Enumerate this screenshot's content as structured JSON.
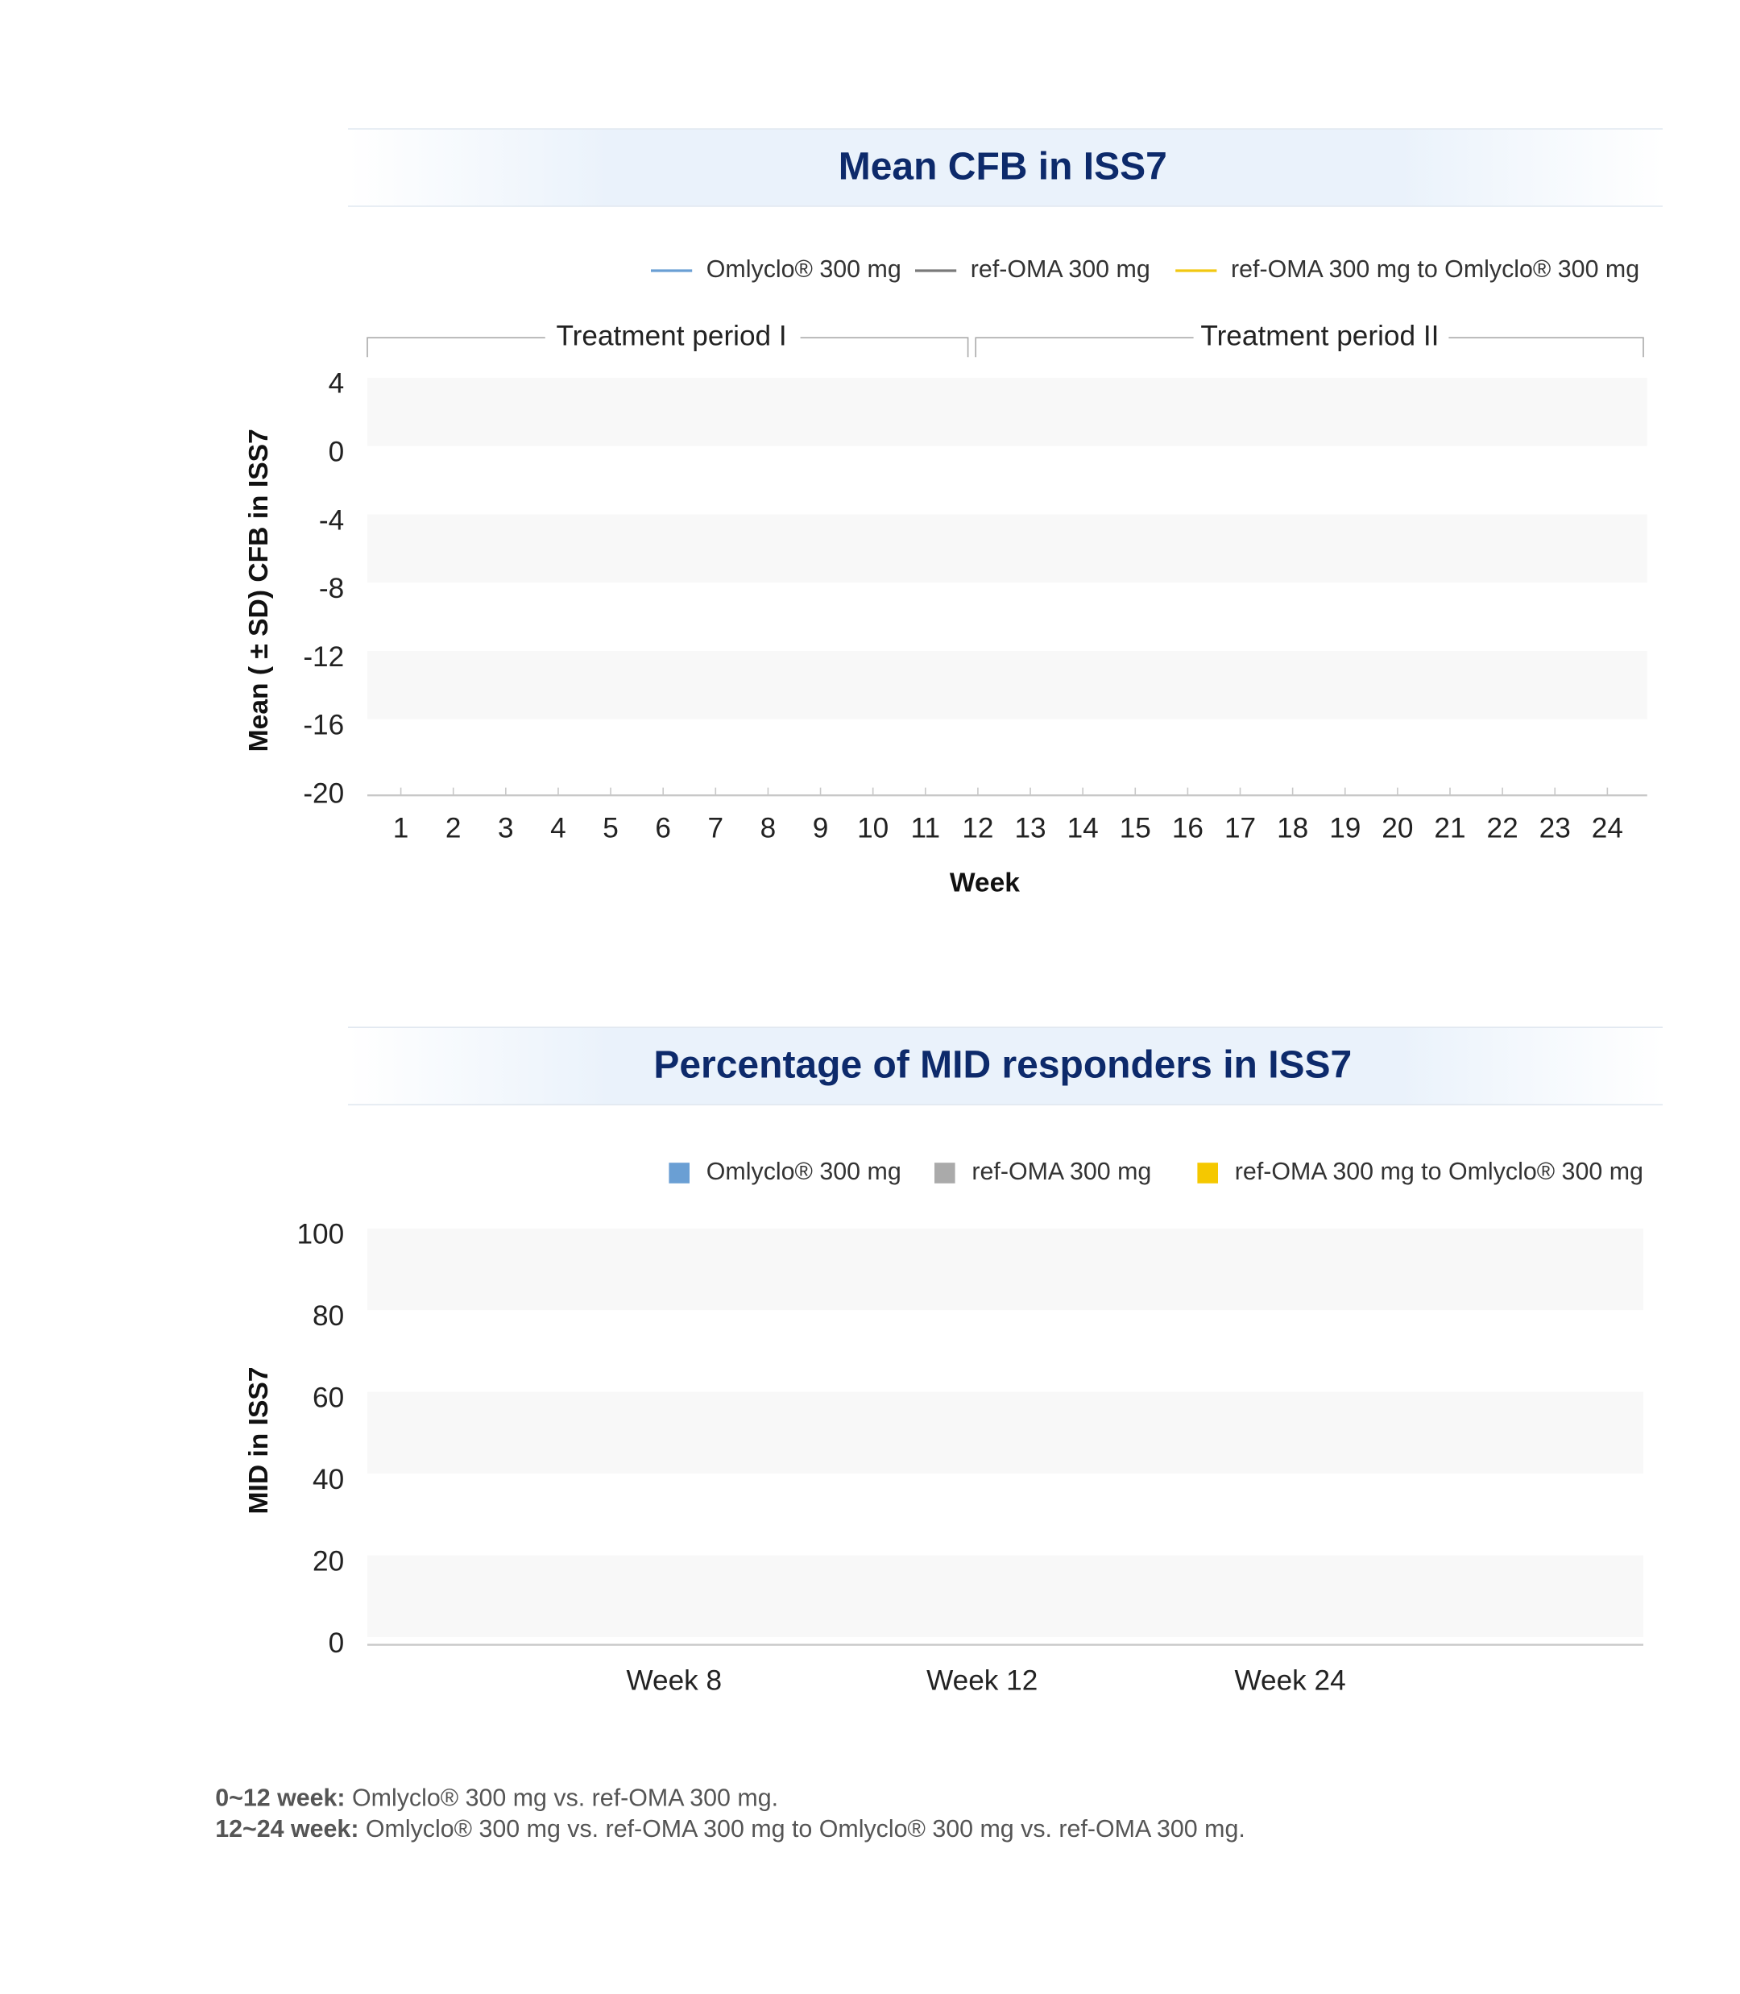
{
  "chart_data": [
    {
      "type": "line",
      "title": "Mean CFB in ISS7",
      "annotations": [
        "Treatment period I",
        "Treatment period II"
      ],
      "categories": [
        "1",
        "2",
        "3",
        "4",
        "5",
        "6",
        "7",
        "8",
        "9",
        "10",
        "11",
        "12",
        "13",
        "14",
        "15",
        "16",
        "17",
        "18",
        "19",
        "20",
        "21",
        "22",
        "23",
        "24"
      ],
      "series": [
        {
          "name": "Omlyclo® 300 mg",
          "color": "#6a9fd4",
          "values": [
            null,
            null,
            null,
            null,
            null,
            null,
            null,
            null,
            null,
            null,
            null,
            null,
            null,
            null,
            null,
            null,
            null,
            null,
            null,
            null,
            null,
            null,
            null,
            null
          ]
        },
        {
          "name": "ref-OMA 300 mg",
          "color": "#7a7a7a",
          "values": [
            null,
            null,
            null,
            null,
            null,
            null,
            null,
            null,
            null,
            null,
            null,
            null,
            null,
            null,
            null,
            null,
            null,
            null,
            null,
            null,
            null,
            null,
            null,
            null
          ]
        },
        {
          "name": "ref-OMA 300 mg to Omlyclo® 300 mg",
          "color": "#f2c811",
          "values": [
            null,
            null,
            null,
            null,
            null,
            null,
            null,
            null,
            null,
            null,
            null,
            null,
            null,
            null,
            null,
            null,
            null,
            null,
            null,
            null,
            null,
            null,
            null,
            null
          ]
        }
      ],
      "x_label": "Week",
      "y_label": "Mean ( ± SD) CFB in ISS7",
      "ylim": [
        -20,
        4
      ],
      "yticks": [
        4,
        0,
        -4,
        -8,
        -12,
        -16,
        -20
      ]
    },
    {
      "type": "bar",
      "title": "Percentage of MID responders in ISS7",
      "categories": [
        "Week 8",
        "Week 12",
        "Week 24"
      ],
      "series": [
        {
          "name": "Omlyclo® 300 mg",
          "color": "#6a9fd4",
          "values": [
            null,
            null,
            null
          ]
        },
        {
          "name": "ref-OMA 300 mg",
          "color": "#aaaaaa",
          "values": [
            null,
            null,
            null
          ]
        },
        {
          "name": "ref-OMA 300 mg to Omlyclo® 300 mg",
          "color": "#f5c800",
          "values": [
            null,
            null,
            null
          ]
        }
      ],
      "y_label": "MID in ISS7",
      "ylim": [
        0,
        100
      ],
      "yticks": [
        100,
        80,
        60,
        40,
        20,
        0
      ]
    }
  ],
  "footnotes": [
    {
      "label": "0~12 week:",
      "text": " Omlyclo® 300 mg vs. ref-OMA 300 mg."
    },
    {
      "label": "12~24 week:",
      "text": " Omlyclo® 300 mg vs. ref-OMA 300 mg to Omlyclo® 300 mg vs. ref-OMA 300 mg."
    }
  ]
}
